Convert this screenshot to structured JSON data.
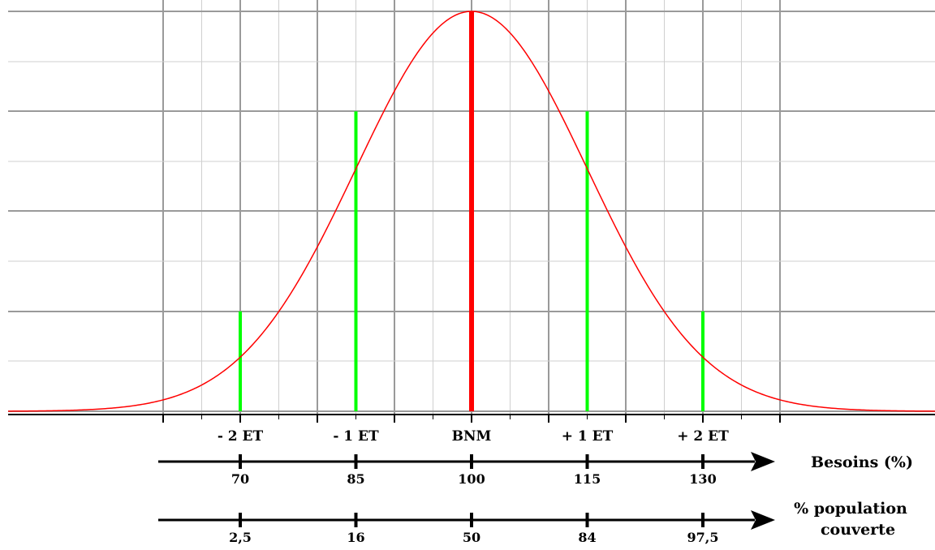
{
  "chart_data": {
    "type": "line",
    "title": "",
    "mean": 100,
    "sd": 15,
    "xlim": [
      60,
      140
    ],
    "grid": true,
    "curve_color": "#ff0000",
    "mean_line_color": "#ff0000",
    "sd_line_color": "#00ff00",
    "gridline_positions": [
      60,
      65,
      70,
      75,
      80,
      85,
      90,
      95,
      100,
      105,
      110,
      115,
      120,
      125,
      130,
      135,
      140
    ],
    "sd_markers": [
      {
        "label": "- 2 ET",
        "besoin": 70,
        "relative_height": 0.25
      },
      {
        "label": "- 1 ET",
        "besoin": 85,
        "relative_height": 0.75
      },
      {
        "label": "BNM",
        "besoin": 100,
        "relative_height": 1.0
      },
      {
        "label": "+ 1 ET",
        "besoin": 115,
        "relative_height": 0.75
      },
      {
        "label": "+ 2 ET",
        "besoin": 130,
        "relative_height": 0.25
      }
    ],
    "besoins_axis": {
      "title": "Besoins (%)",
      "ticks": [
        "70",
        "85",
        "100",
        "115",
        "130"
      ]
    },
    "population_axis": {
      "title_line1": "% population",
      "title_line2": "couverte",
      "ticks": [
        "2,5",
        "16",
        "50",
        "84",
        "97,5"
      ]
    }
  }
}
